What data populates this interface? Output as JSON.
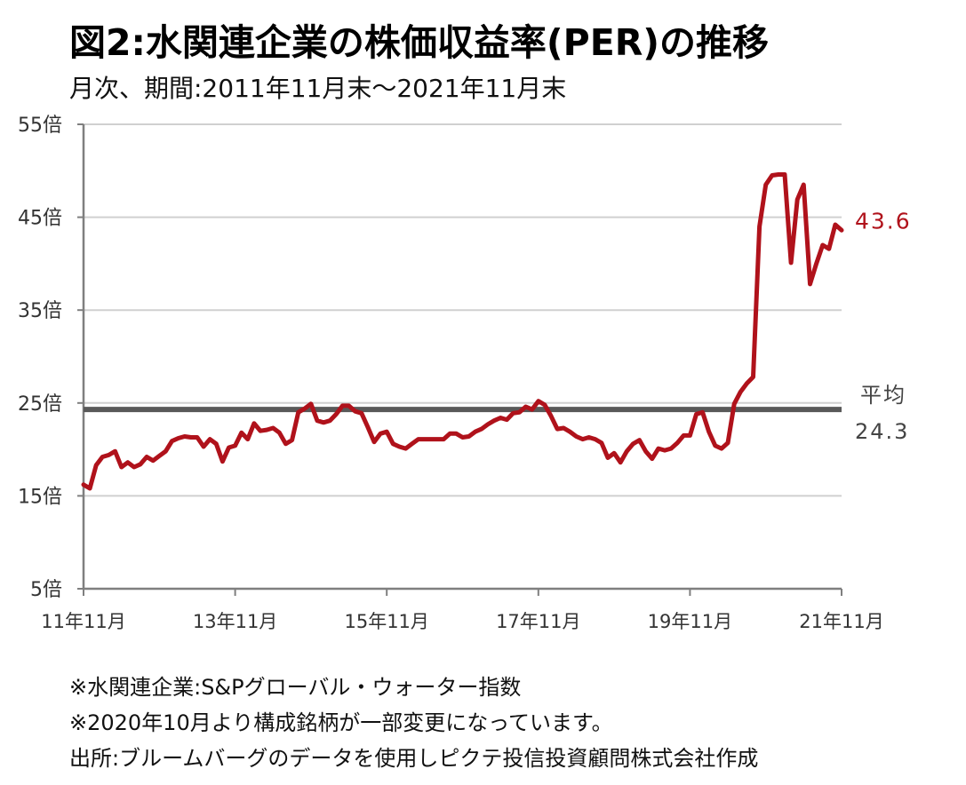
{
  "title": "図2:水関連企業の株価収益率(PER)の推移",
  "subtitle": "月次、期間:2011年11月末～2021年11月末",
  "notes": [
    "※水関連企業:S&Pグローバル・ウォーター指数",
    "※2020年10月より構成銘柄が一部変更になっています。",
    "出所:ブルームバーグのデータを使用しピクテ投信投資顧問株式会社作成"
  ],
  "chart_data": {
    "type": "line",
    "x_tick_labels": [
      "11年11月",
      "13年11月",
      "15年11月",
      "17年11月",
      "19年11月",
      "21年11月"
    ],
    "y_tick_labels": [
      "5倍",
      "15倍",
      "25倍",
      "35倍",
      "45倍",
      "55倍"
    ],
    "y_ticks": [
      5,
      15,
      25,
      35,
      45,
      55
    ],
    "ylim": [
      5,
      55
    ],
    "x_range_months": [
      0,
      120
    ],
    "grid": true,
    "colors": {
      "line": "#b0121b",
      "average": "#595959",
      "grid": "#d0d0d0",
      "axis": "#7f7f7f"
    },
    "series": [
      {
        "values": [
          16.2,
          15.8,
          18.3,
          19.2,
          19.4,
          19.8,
          18.1,
          18.6,
          18.1,
          18.4,
          19.2,
          18.8,
          19.3,
          19.8,
          20.9,
          21.2,
          21.4,
          21.3,
          21.3,
          20.3,
          21.1,
          20.6,
          18.7,
          20.2,
          20.4,
          21.8,
          21.1,
          22.8,
          22.0,
          22.1,
          22.3,
          21.8,
          20.6,
          21.0,
          24.0,
          24.4,
          24.9,
          23.1,
          22.9,
          23.1,
          23.8,
          24.7,
          24.7,
          24.1,
          23.9,
          22.4,
          20.8,
          21.7,
          21.9,
          20.6,
          20.3,
          20.1,
          20.6,
          21.1,
          21.1,
          21.1,
          21.1,
          21.1,
          21.7,
          21.7,
          21.3,
          21.4,
          21.9,
          22.2,
          22.7,
          23.1,
          23.4,
          23.2,
          23.9,
          24.0,
          24.6,
          24.3,
          25.2,
          24.8,
          23.6,
          22.2,
          22.3,
          21.9,
          21.4,
          21.1,
          21.3,
          21.1,
          20.7,
          19.1,
          19.6,
          18.6,
          19.8,
          20.6,
          21.0,
          19.8,
          19.0,
          20.1,
          19.9,
          20.1,
          20.7,
          21.5,
          21.5,
          23.8,
          24.0,
          21.9,
          20.4,
          20.1,
          20.7,
          24.9,
          26.2,
          27.1,
          27.8,
          44.0,
          48.5,
          49.5,
          49.6,
          49.6,
          40.1,
          46.9,
          48.5,
          37.8,
          40.0,
          42.0,
          41.6,
          44.2,
          43.6
        ]
      }
    ],
    "average": {
      "label": "平均",
      "value": 24.3,
      "value_text": "24.3"
    },
    "end_label": "43.6"
  }
}
